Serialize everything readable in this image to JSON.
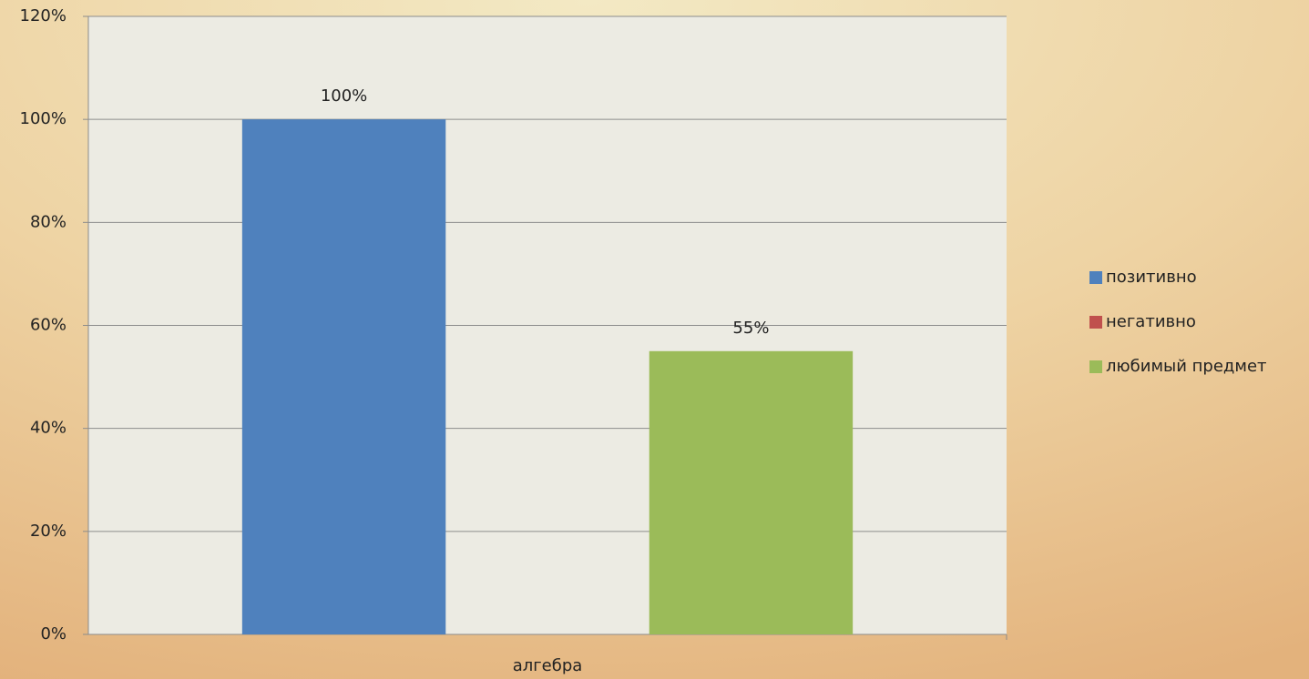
{
  "chart_data": {
    "type": "bar",
    "categories": [
      "алгебра"
    ],
    "series": [
      {
        "name": "позитивно",
        "color": "#4f81bd",
        "values": [
          100
        ],
        "value_labels": [
          "100%"
        ]
      },
      {
        "name": "негативно",
        "color": "#c0504d",
        "values": [
          0
        ],
        "value_labels": [
          null
        ]
      },
      {
        "name": "любимый предмет",
        "color": "#9bbb59",
        "values": [
          55
        ],
        "value_labels": [
          "55%"
        ]
      }
    ],
    "ylim": [
      0,
      120
    ],
    "yticks": [
      {
        "value": 0,
        "label": "0%"
      },
      {
        "value": 20,
        "label": "20%"
      },
      {
        "value": 40,
        "label": "40%"
      },
      {
        "value": 60,
        "label": "60%"
      },
      {
        "value": 80,
        "label": "80%"
      },
      {
        "value": 100,
        "label": "100%"
      },
      {
        "value": 120,
        "label": "120%"
      }
    ],
    "grid": true,
    "legend": "right"
  }
}
